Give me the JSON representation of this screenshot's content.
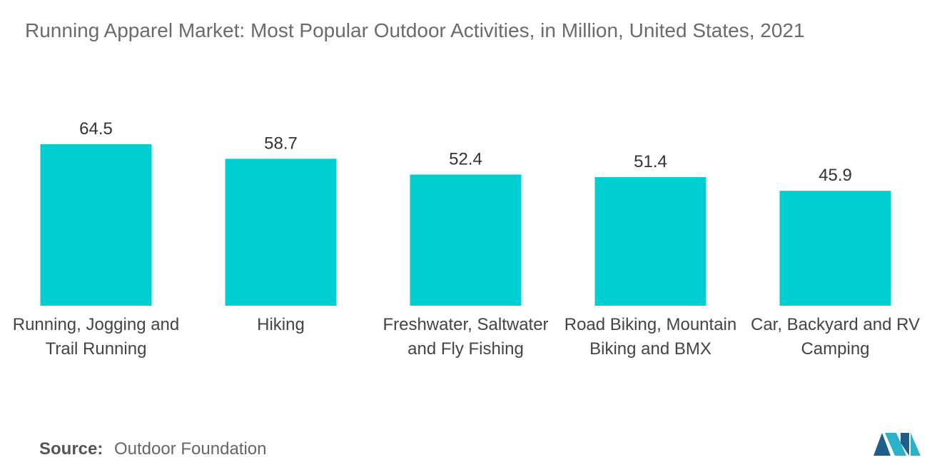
{
  "chart_data": {
    "type": "bar",
    "title": "Running Apparel Market: Most Popular Outdoor Activities, in Million, United States, 2021",
    "categories": [
      "Running, Jogging and Trail Running",
      "Hiking",
      "Freshwater, Saltwater and Fly Fishing",
      "Road Biking, Mountain Biking and BMX",
      "Car, Backyard and RV Camping"
    ],
    "values": [
      64.5,
      58.7,
      52.4,
      51.4,
      45.9
    ],
    "color": "#00ced1",
    "source_label": "Source:",
    "source": "Outdoor Foundation"
  }
}
